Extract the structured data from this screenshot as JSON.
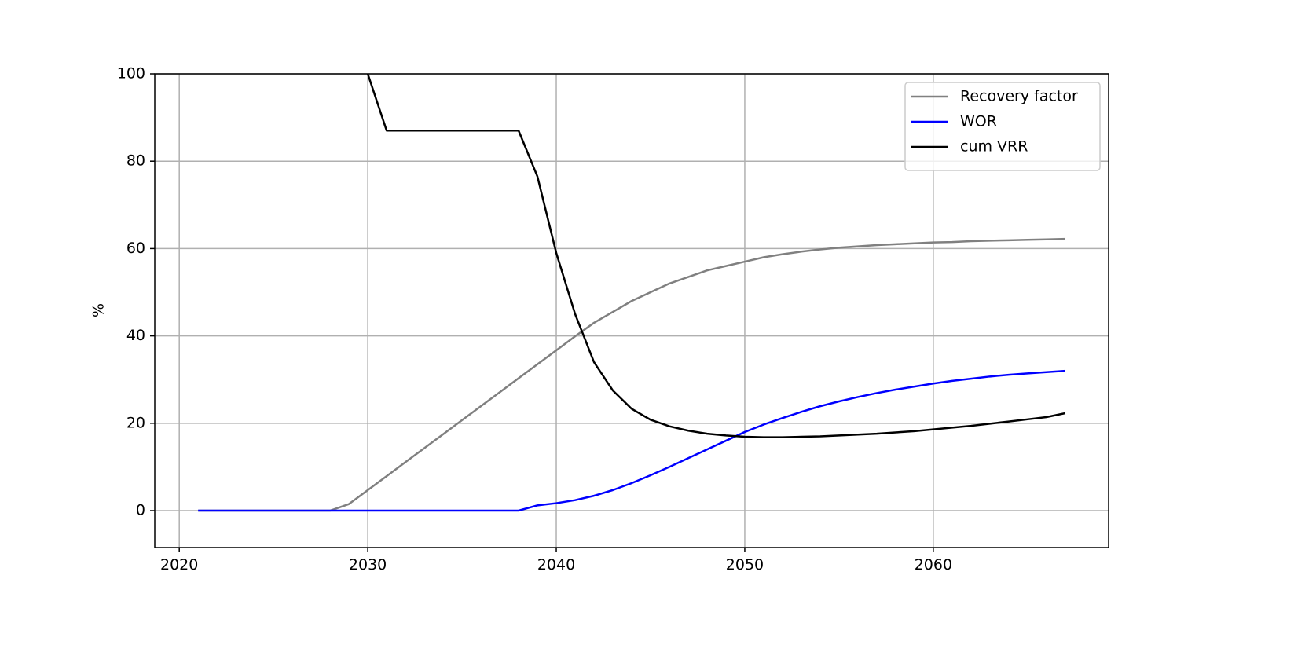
{
  "chart_data": {
    "type": "line",
    "ylabel": "%",
    "x": [
      2021,
      2022,
      2023,
      2024,
      2025,
      2026,
      2027,
      2028,
      2029,
      2030,
      2031,
      2032,
      2033,
      2034,
      2035,
      2036,
      2037,
      2038,
      2039,
      2040,
      2041,
      2042,
      2043,
      2044,
      2045,
      2046,
      2047,
      2048,
      2049,
      2050,
      2051,
      2052,
      2053,
      2054,
      2055,
      2056,
      2057,
      2058,
      2059,
      2060,
      2061,
      2062,
      2063,
      2064,
      2065,
      2066,
      2067
    ],
    "series": [
      {
        "name": "Recovery factor",
        "color": "#808080",
        "values": [
          0,
          0,
          0,
          0,
          0,
          0,
          0,
          0,
          1.5,
          4.7,
          7.9,
          11.1,
          14.3,
          17.5,
          20.7,
          23.9,
          27.1,
          30.3,
          33.5,
          36.7,
          39.9,
          43,
          45.5,
          48,
          50,
          52,
          53.5,
          55,
          56,
          57,
          58,
          58.7,
          59.3,
          59.8,
          60.2,
          60.5,
          60.8,
          61.0,
          61.2,
          61.4,
          61.5,
          61.7,
          61.8,
          61.9,
          62.0,
          62.1,
          62.2
        ]
      },
      {
        "name": "WOR",
        "color": "#0000ff",
        "values": [
          0,
          0,
          0,
          0,
          0,
          0,
          0,
          0,
          0,
          0,
          0,
          0,
          0,
          0,
          0,
          0,
          0,
          0,
          1.2,
          1.7,
          2.4,
          3.4,
          4.7,
          6.3,
          8.1,
          10.0,
          12.0,
          14.0,
          16.0,
          18.0,
          19.7,
          21.2,
          22.6,
          23.9,
          25.0,
          26.0,
          26.9,
          27.7,
          28.4,
          29.1,
          29.7,
          30.2,
          30.7,
          31.1,
          31.4,
          31.7,
          32.0
        ]
      },
      {
        "name": "cum VRR",
        "color": "#000000",
        "values": [
          null,
          null,
          null,
          null,
          null,
          null,
          null,
          null,
          null,
          100,
          87,
          87,
          87,
          87,
          87,
          87,
          87,
          87,
          76.5,
          59,
          45,
          34,
          27.5,
          23.3,
          20.8,
          19.3,
          18.3,
          17.6,
          17.2,
          16.9,
          16.8,
          16.8,
          16.9,
          17.0,
          17.2,
          17.4,
          17.6,
          17.9,
          18.2,
          18.6,
          19.0,
          19.4,
          19.9,
          20.4,
          20.9,
          21.4,
          22.3
        ]
      }
    ],
    "xlim": [
      2018.7,
      2069.3
    ],
    "ylim": [
      -8.45,
      100
    ],
    "xticks": [
      2020,
      2030,
      2040,
      2050,
      2060
    ],
    "yticks": [
      0,
      20,
      40,
      60,
      80,
      100
    ],
    "grid": true,
    "legend": "upper right"
  }
}
